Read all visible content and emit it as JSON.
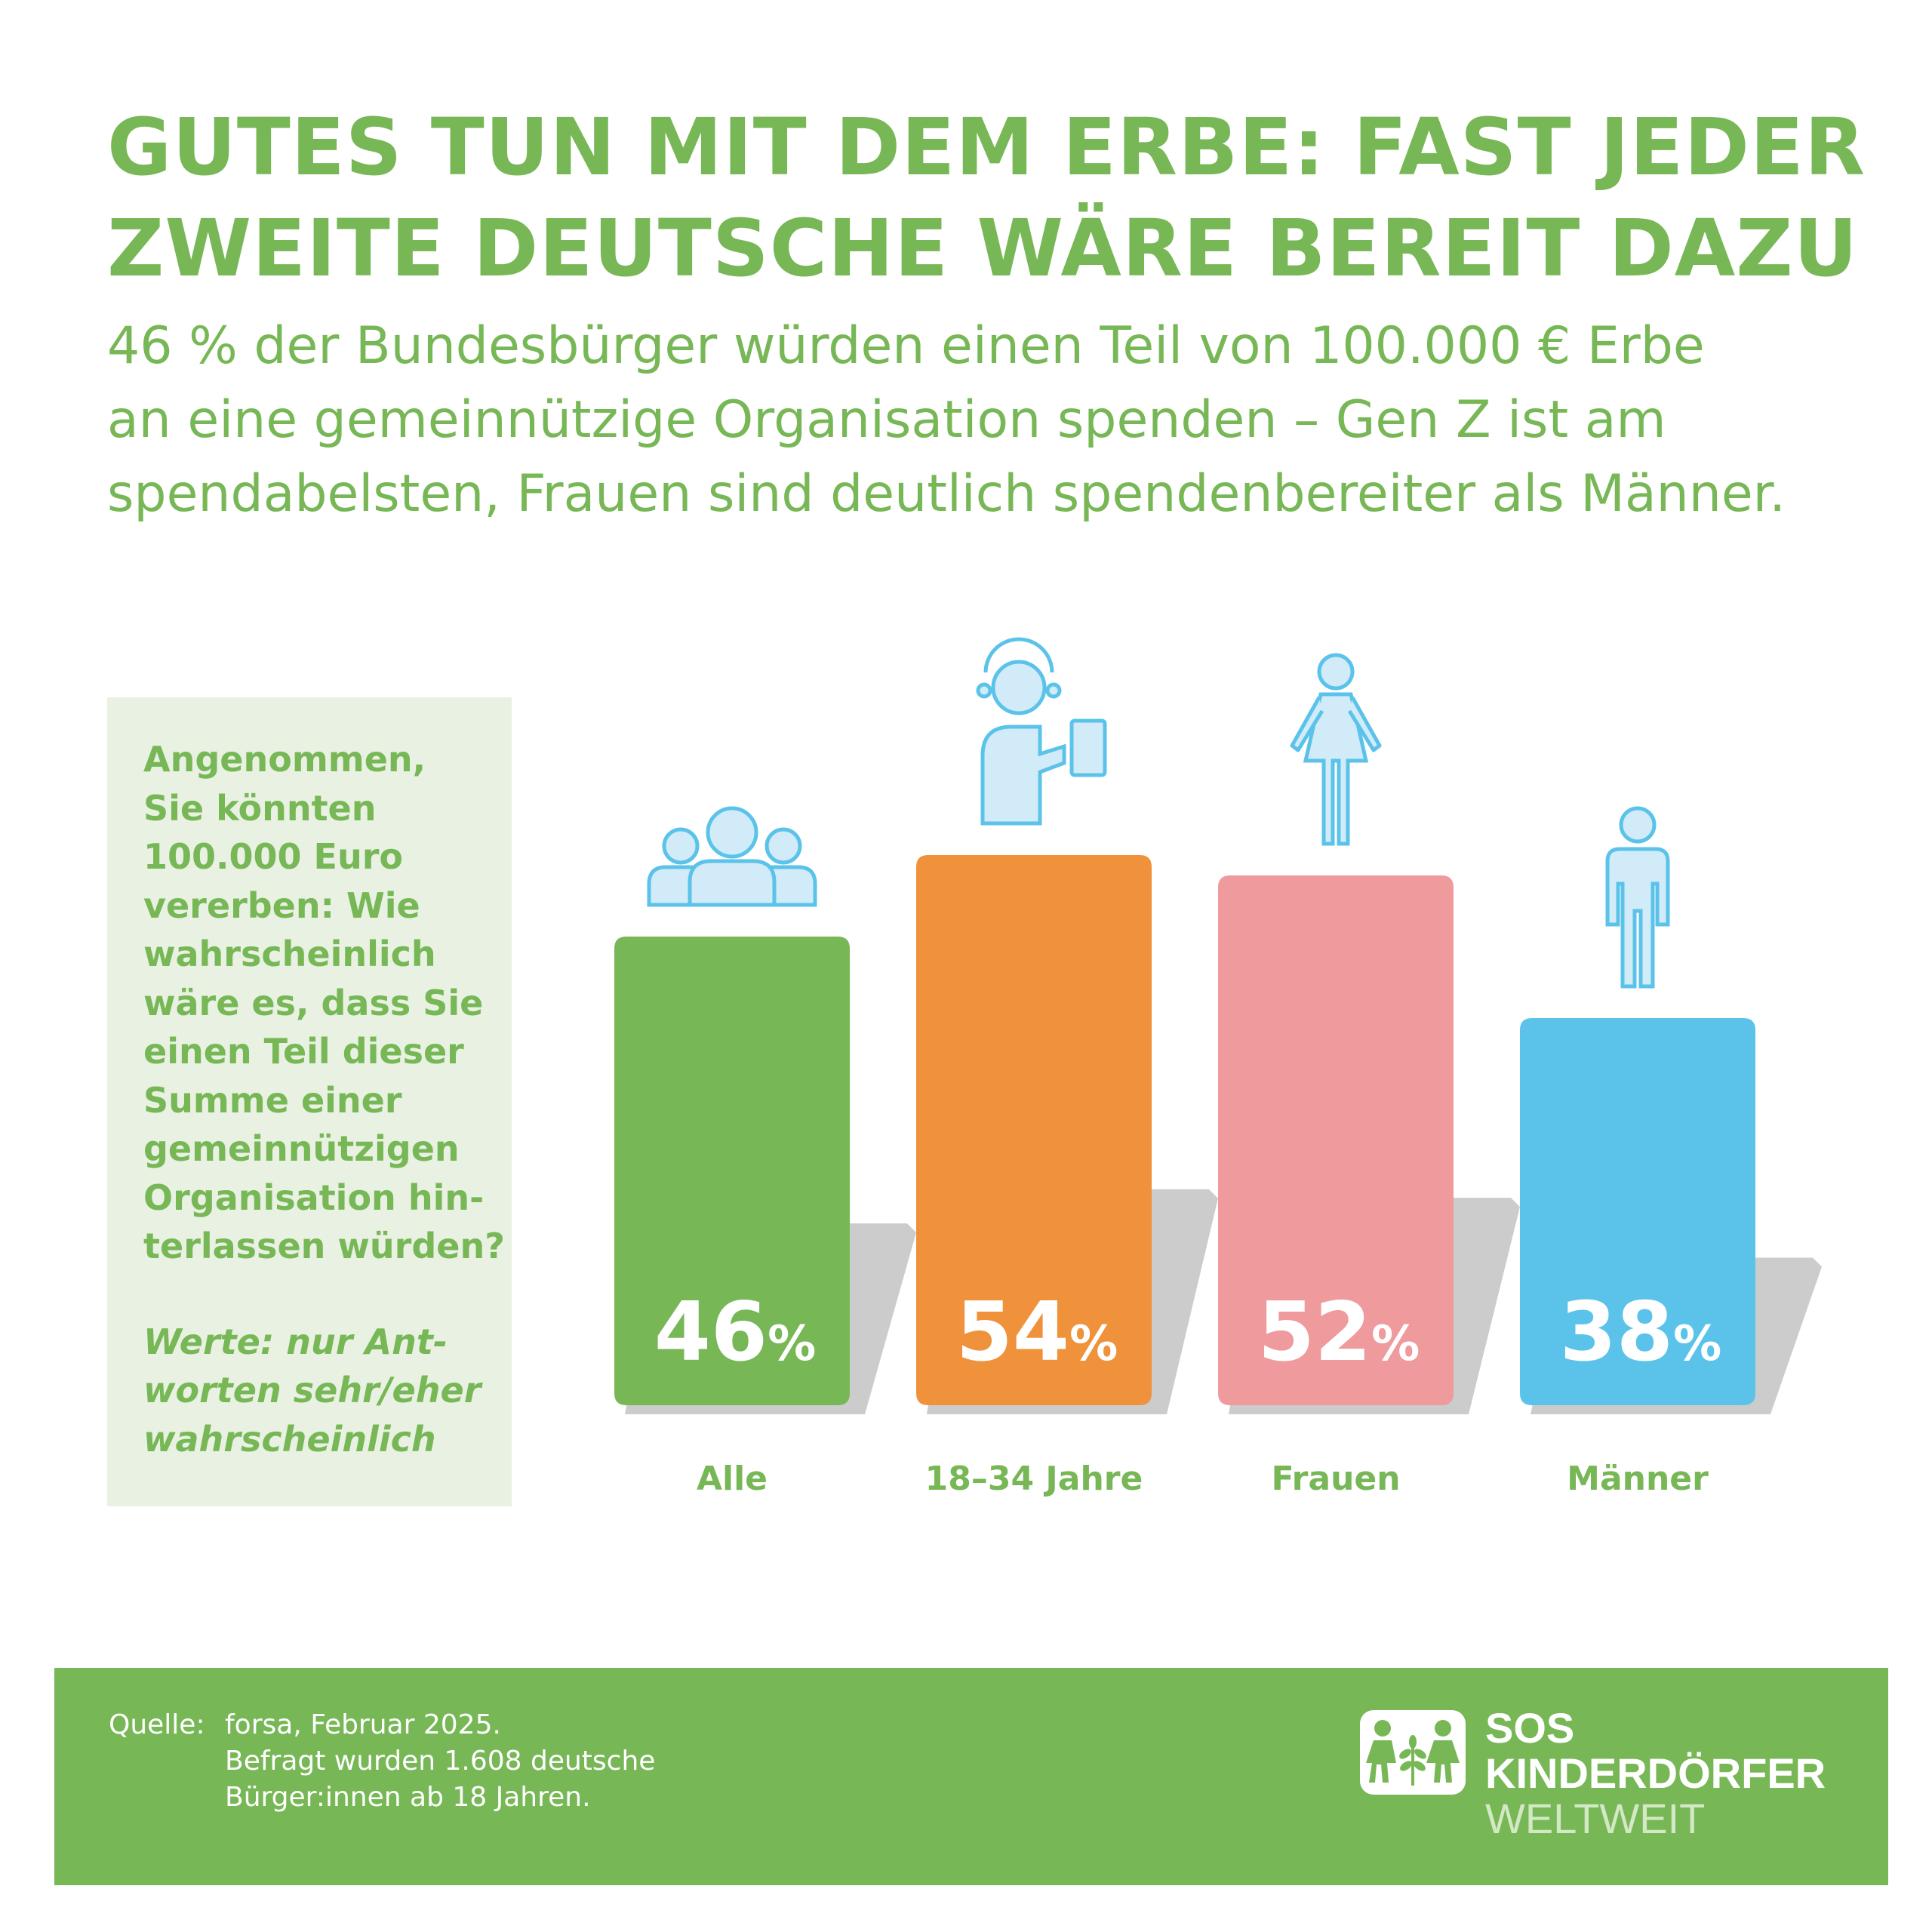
{
  "title": {
    "line1": "GUTES TUN MIT DEM ERBE: FAST JEDER",
    "line2": "ZWEITE DEUTSCHE WÄRE BEREIT DAZU"
  },
  "subtitle": {
    "line1": "46 % der Bundesbürger würden einen Teil von 100.000 € Erbe",
    "line2": "an eine gemeinnützige Organisation spenden – Gen Z ist am",
    "line3": "spendabelsten, Frauen sind deutlich spendenbereiter als Männer."
  },
  "question": {
    "lines": [
      "Angenommen,",
      "Sie könnten",
      "100.000 Euro",
      "vererben: Wie",
      "wahrscheinlich",
      "wäre es, dass Sie",
      "einen Teil dieser",
      "Summe einer",
      "gemeinnützigen",
      "Organisation hin-",
      "terlassen würden?"
    ],
    "note_lines": [
      "Werte: nur Ant-",
      "worten sehr/eher",
      "wahrscheinlich"
    ]
  },
  "chart_data": {
    "type": "bar",
    "categories": [
      "Alle",
      "18–34 Jahre",
      "Frauen",
      "Männer"
    ],
    "values": [
      46,
      54,
      52,
      38
    ],
    "unit": "%",
    "colors": [
      "#77b756",
      "#ef923b",
      "#ef9a9c",
      "#5bc3ea"
    ],
    "icons": [
      "group-icon",
      "young-person-tablet-icon",
      "woman-icon",
      "man-icon"
    ]
  },
  "footer": {
    "source_label": "Quelle:",
    "source_lines": [
      "forsa, Februar 2025.",
      "Befragt wurden 1.608 deutsche",
      "Bürger:innen ab 18 Jahren."
    ],
    "logo_line1": "SOS",
    "logo_line2": "KINDERDÖRFER",
    "logo_line3": "WELTWEIT"
  },
  "colors": {
    "brand_green": "#77b756",
    "box_background": "#e8f1e2",
    "icon_stroke": "#5bc3ea",
    "icon_fill": "#d2ebf8",
    "shadow": "#cccccc"
  }
}
